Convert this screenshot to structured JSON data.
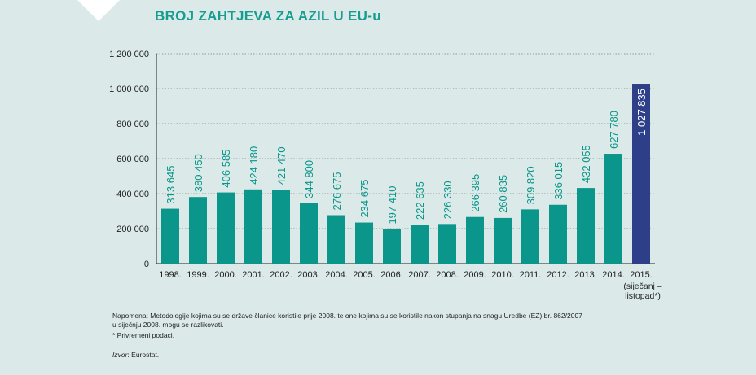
{
  "title": "BROJ ZAHTJEVA ZA AZIL U EU-u",
  "chart_data": {
    "type": "bar",
    "title": "BROJ ZAHTJEVA ZA AZIL U EU-u",
    "categories": [
      "1998.",
      "1999.",
      "2000.",
      "2001.",
      "2002.",
      "2003.",
      "2004.",
      "2005.",
      "2006.",
      "2007.",
      "2008.",
      "2009.",
      "2010.",
      "2011.",
      "2012.",
      "2013.",
      "2014.",
      "2015."
    ],
    "category_sublabels": {
      "2015.": [
        "(siječanj –",
        "listopad*)"
      ]
    },
    "values": [
      313645,
      380450,
      406585,
      424180,
      421470,
      344800,
      276675,
      234675,
      197410,
      222635,
      226330,
      266395,
      260835,
      309820,
      336015,
      432055,
      627780,
      1027835
    ],
    "value_labels": [
      "313 645",
      "380 450",
      "406 585",
      "424 180",
      "421 470",
      "344 800",
      "276 675",
      "234 675",
      "197 410",
      "222 635",
      "226 330",
      "266 395",
      "260 835",
      "309 820",
      "336 015",
      "432 055",
      "627 780",
      "1 027 835"
    ],
    "y_ticks": [
      0,
      200000,
      400000,
      600000,
      800000,
      1000000,
      1200000
    ],
    "y_tick_labels": [
      "0",
      "200 000",
      "400 000",
      "600 000",
      "800 000",
      "1 000 000",
      "1 200 000"
    ],
    "ylim": [
      0,
      1200000
    ],
    "grid": true,
    "xlabel": "",
    "ylabel": "",
    "colors": {
      "bar": "#0a968a",
      "highlight_bar": "#2e3f8a",
      "label": "#0a968a",
      "highlight_label": "#ffffff"
    },
    "highlight_index": 17
  },
  "notes": {
    "line1": "Napomena: Metodologije kojima su se države članice koristile prije 2008. te one kojima su se koristile nakon stupanja na snagu Uredbe (EZ) br. 862/2007",
    "line2": "u siječnju 2008. mogu se razlikovati.",
    "line3": "* Privremeni podaci.",
    "source_label": "Izvor",
    "source_value": ": Eurostat."
  }
}
